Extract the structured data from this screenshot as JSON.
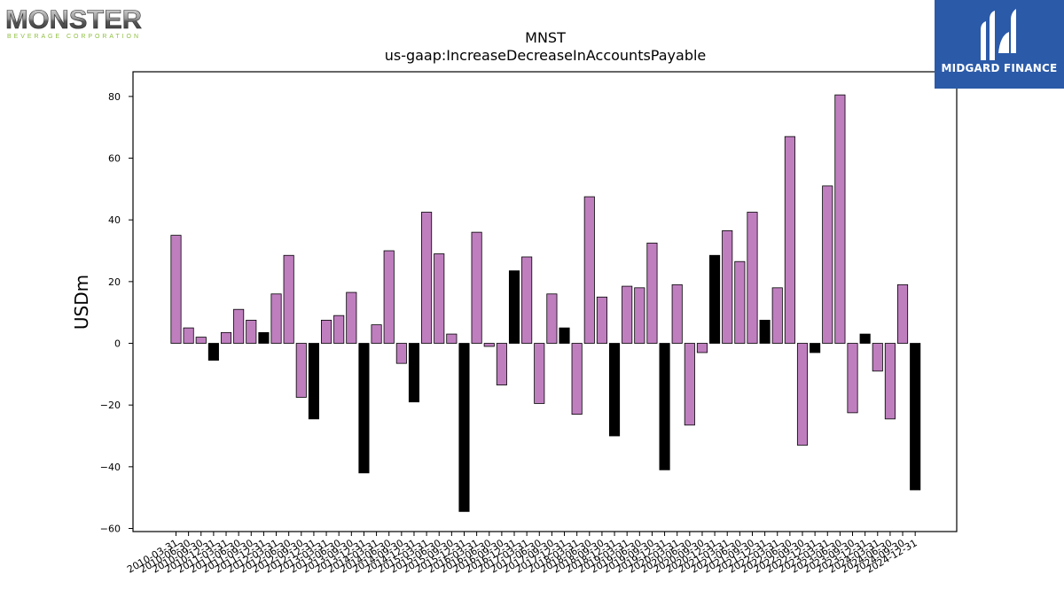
{
  "logos": {
    "left": {
      "wordmark": "MONSTER",
      "tagline": "BEVERAGE CORPORATION"
    },
    "right": {
      "wordmark": "MIDGARD FINANCE",
      "icon": "midgard-finance-icon"
    }
  },
  "colors": {
    "positive_bar": "#bf7fbf",
    "q4_bar": "#000000",
    "axis": "#000000"
  },
  "chart_data": {
    "type": "bar",
    "title": "MNST",
    "subtitle": "us-gaap:IncreaseDecreaseInAccountsPayable",
    "xlabel": "",
    "ylabel": "USDm",
    "ylim": [
      -61,
      88
    ],
    "yticks": [
      -60,
      -40,
      -20,
      0,
      20,
      40,
      60,
      80
    ],
    "grid": false,
    "categories": [
      "2010-03-31",
      "2010-06-30",
      "2010-09-30",
      "2010-12-31",
      "2011-03-31",
      "2011-06-30",
      "2011-09-30",
      "2011-12-31",
      "2012-03-31",
      "2012-06-30",
      "2012-09-30",
      "2012-12-31",
      "2013-03-31",
      "2013-06-30",
      "2013-09-30",
      "2013-12-31",
      "2014-03-31",
      "2014-06-30",
      "2014-09-30",
      "2014-12-31",
      "2015-03-31",
      "2015-06-30",
      "2015-09-30",
      "2015-12-31",
      "2016-03-31",
      "2016-06-30",
      "2016-09-30",
      "2016-12-31",
      "2017-03-31",
      "2017-06-30",
      "2017-09-30",
      "2017-12-31",
      "2018-03-31",
      "2018-06-30",
      "2018-09-30",
      "2018-12-31",
      "2019-03-31",
      "2019-06-30",
      "2019-09-30",
      "2019-12-31",
      "2020-03-31",
      "2020-06-30",
      "2020-09-30",
      "2020-12-31",
      "2021-03-31",
      "2021-06-30",
      "2021-09-30",
      "2021-12-31",
      "2022-03-31",
      "2022-06-30",
      "2022-09-30",
      "2022-12-31",
      "2023-03-31",
      "2023-06-30",
      "2023-09-30",
      "2023-12-31",
      "2024-03-31",
      "2024-06-30",
      "2024-09-30",
      "2024-12-31"
    ],
    "values": [
      35,
      5,
      2,
      -5.5,
      3.5,
      11,
      7.5,
      3.5,
      16,
      28.5,
      -17.5,
      -24.5,
      7.5,
      9,
      16.5,
      -42,
      6,
      30,
      -6.5,
      -19,
      42.5,
      29,
      3,
      -54.5,
      36,
      -1,
      -13.5,
      23.5,
      28,
      -19.5,
      16,
      5,
      -23,
      47.5,
      15,
      -30,
      18.5,
      18,
      32.5,
      -41,
      19,
      -26.5,
      -3,
      28.5,
      36.5,
      26.5,
      42.5,
      7.5,
      18,
      67,
      -33,
      -3,
      51,
      80.5,
      -22.5,
      3,
      -9,
      -24.5,
      19,
      -47.5
    ],
    "bar_colors": [
      "#bf7fbf",
      "#bf7fbf",
      "#bf7fbf",
      "#000000",
      "#bf7fbf",
      "#bf7fbf",
      "#bf7fbf",
      "#000000",
      "#bf7fbf",
      "#bf7fbf",
      "#bf7fbf",
      "#000000",
      "#bf7fbf",
      "#bf7fbf",
      "#bf7fbf",
      "#000000",
      "#bf7fbf",
      "#bf7fbf",
      "#bf7fbf",
      "#000000",
      "#bf7fbf",
      "#bf7fbf",
      "#bf7fbf",
      "#000000",
      "#bf7fbf",
      "#bf7fbf",
      "#bf7fbf",
      "#000000",
      "#bf7fbf",
      "#bf7fbf",
      "#bf7fbf",
      "#000000",
      "#bf7fbf",
      "#bf7fbf",
      "#bf7fbf",
      "#000000",
      "#bf7fbf",
      "#bf7fbf",
      "#bf7fbf",
      "#000000",
      "#bf7fbf",
      "#bf7fbf",
      "#bf7fbf",
      "#000000",
      "#bf7fbf",
      "#bf7fbf",
      "#bf7fbf",
      "#000000",
      "#bf7fbf",
      "#bf7fbf",
      "#bf7fbf",
      "#000000",
      "#bf7fbf",
      "#bf7fbf",
      "#bf7fbf",
      "#000000",
      "#bf7fbf",
      "#bf7fbf",
      "#bf7fbf",
      "#000000"
    ]
  }
}
